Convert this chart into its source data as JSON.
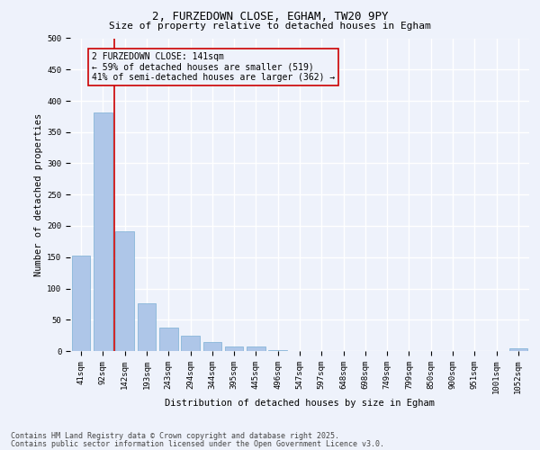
{
  "title_line1": "2, FURZEDOWN CLOSE, EGHAM, TW20 9PY",
  "title_line2": "Size of property relative to detached houses in Egham",
  "xlabel": "Distribution of detached houses by size in Egham",
  "ylabel": "Number of detached properties",
  "categories": [
    "41sqm",
    "92sqm",
    "142sqm",
    "193sqm",
    "243sqm",
    "294sqm",
    "344sqm",
    "395sqm",
    "445sqm",
    "496sqm",
    "547sqm",
    "597sqm",
    "648sqm",
    "698sqm",
    "749sqm",
    "799sqm",
    "850sqm",
    "900sqm",
    "951sqm",
    "1001sqm",
    "1052sqm"
  ],
  "values": [
    152,
    382,
    192,
    76,
    38,
    25,
    15,
    7,
    7,
    2,
    0,
    0,
    0,
    0,
    0,
    0,
    0,
    0,
    0,
    0,
    4
  ],
  "bar_color": "#aec6e8",
  "bar_edgecolor": "#7bafd4",
  "annotation_text": "2 FURZEDOWN CLOSE: 141sqm\n← 59% of detached houses are smaller (519)\n41% of semi-detached houses are larger (362) →",
  "vline_color": "#cc0000",
  "annotation_box_color": "#cc0000",
  "ylim": [
    0,
    500
  ],
  "yticks": [
    0,
    50,
    100,
    150,
    200,
    250,
    300,
    350,
    400,
    450,
    500
  ],
  "footer_line1": "Contains HM Land Registry data © Crown copyright and database right 2025.",
  "footer_line2": "Contains public sector information licensed under the Open Government Licence v3.0.",
  "background_color": "#eef2fb",
  "grid_color": "#ffffff",
  "title1_fontsize": 9,
  "title2_fontsize": 8,
  "ylabel_fontsize": 7.5,
  "xlabel_fontsize": 7.5,
  "tick_fontsize": 6.5,
  "annot_fontsize": 7,
  "footer_fontsize": 6
}
